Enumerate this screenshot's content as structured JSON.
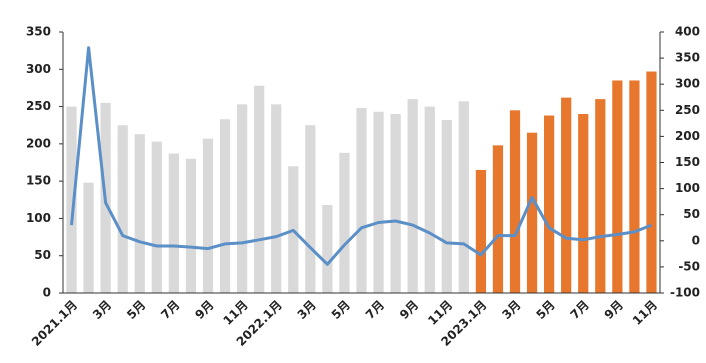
{
  "chart_data": {
    "type": "bar",
    "categories": [
      "2021.1月",
      null,
      "3月",
      null,
      "5月",
      null,
      "7月",
      null,
      "9月",
      null,
      "11月",
      null,
      "2022.1月",
      null,
      "3月",
      null,
      "5月",
      null,
      "7月",
      null,
      "9月",
      null,
      "11月",
      null,
      "2023.1月",
      null,
      "3月",
      null,
      "5月",
      null,
      "7月",
      null,
      "9月",
      null,
      "11月"
    ],
    "series": [
      {
        "type": "bar",
        "color": "#d9d9d9",
        "values": [
          250,
          148,
          255,
          225,
          213,
          203,
          187,
          180,
          207,
          233,
          253,
          278,
          253,
          170,
          225,
          118,
          188,
          248,
          243,
          240,
          260,
          250,
          232,
          257,
          null,
          null,
          null,
          null,
          null,
          null,
          null,
          null,
          null,
          null,
          null
        ]
      },
      {
        "type": "bar",
        "color": "#e8772e",
        "values": [
          null,
          null,
          null,
          null,
          null,
          null,
          null,
          null,
          null,
          null,
          null,
          null,
          null,
          null,
          null,
          null,
          null,
          null,
          null,
          null,
          null,
          null,
          null,
          null,
          165,
          198,
          245,
          215,
          238,
          262,
          240,
          260,
          285,
          285,
          297
        ]
      },
      {
        "type": "line",
        "axis": "y2",
        "color": "#5b8fc7",
        "values": [
          30,
          370,
          73,
          10,
          -2,
          -10,
          -10,
          -12,
          -15,
          -6,
          -4,
          2,
          8,
          20,
          -13,
          -45,
          -8,
          25,
          35,
          38,
          30,
          15,
          -4,
          -6,
          -27,
          10,
          10,
          83,
          25,
          5,
          2,
          8,
          12,
          17,
          30
        ]
      }
    ],
    "ylim": [
      0,
      350
    ],
    "yticks": [
      0,
      50,
      100,
      150,
      200,
      250,
      300,
      350
    ],
    "y2lim": [
      -100,
      400
    ],
    "y2ticks": [
      -100,
      -50,
      0,
      50,
      100,
      150,
      200,
      250,
      300,
      350,
      400
    ]
  }
}
